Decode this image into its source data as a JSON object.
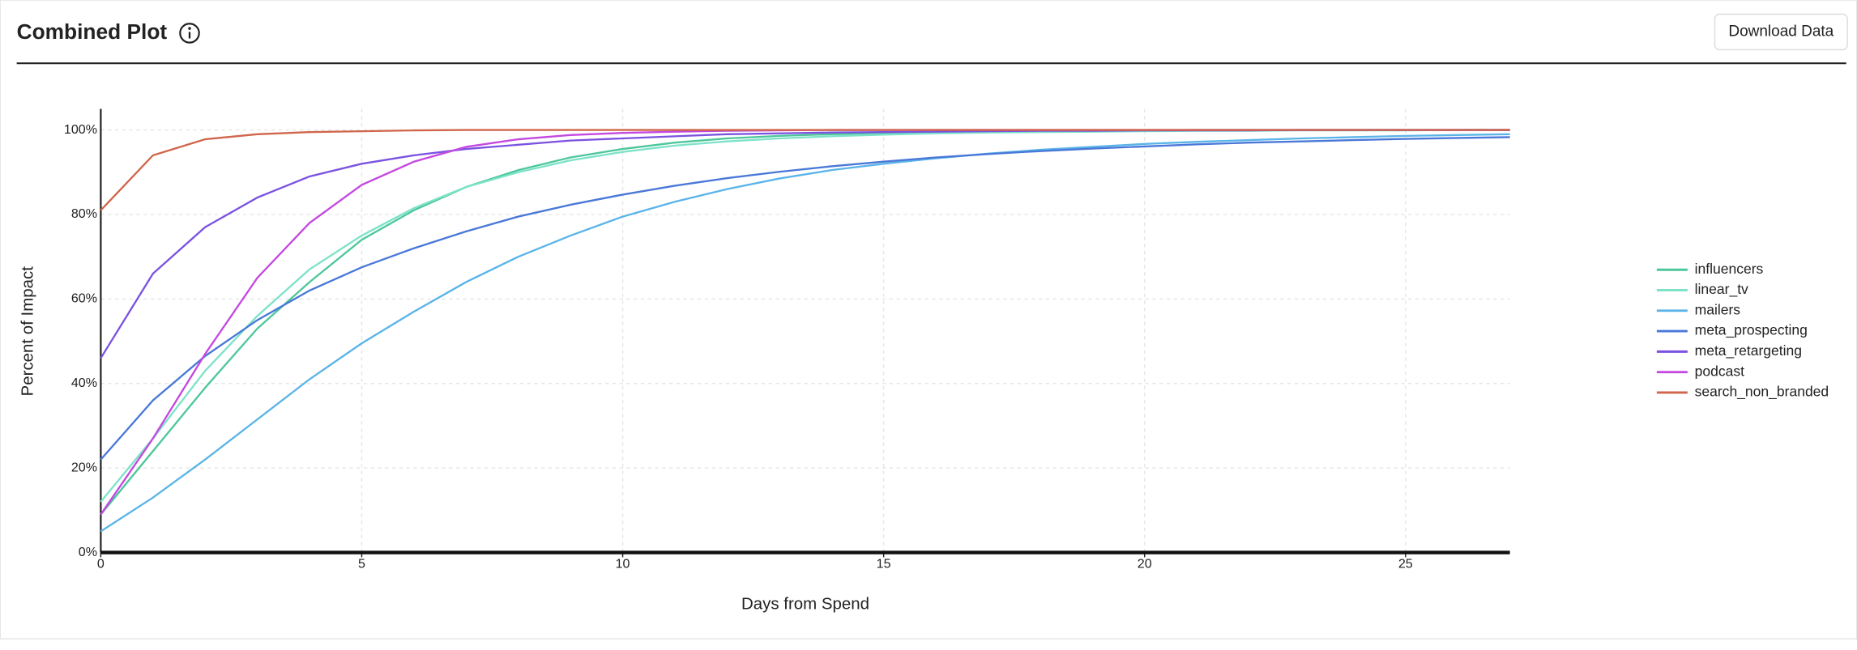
{
  "header": {
    "button": "Download Data"
  },
  "chart_data": {
    "type": "line",
    "title": "Combined Plot",
    "xlabel": "Days from Spend",
    "ylabel": "Percent of Impact",
    "x": [
      0,
      1,
      2,
      3,
      4,
      5,
      6,
      7,
      8,
      9,
      10,
      11,
      12,
      13,
      14,
      15,
      16,
      17,
      18,
      19,
      20,
      21,
      22,
      23,
      24,
      25,
      26,
      27
    ],
    "xlim": [
      0,
      27
    ],
    "xticks": [
      0,
      5,
      10,
      15,
      20,
      25
    ],
    "ylim": [
      0,
      105
    ],
    "yticks": [
      {
        "value": 0,
        "label": "0%"
      },
      {
        "value": 20,
        "label": "20%"
      },
      {
        "value": 40,
        "label": "40%"
      },
      {
        "value": 60,
        "label": "60%"
      },
      {
        "value": 80,
        "label": "80%"
      },
      {
        "value": 100,
        "label": "100%"
      }
    ],
    "grid": true,
    "legend": "right",
    "series": [
      {
        "name": "influencers",
        "color": "#4cc79a",
        "values": [
          9,
          24,
          39,
          53,
          64,
          74,
          81,
          86.5,
          90.5,
          93.5,
          95.5,
          97,
          98,
          98.6,
          99,
          99.3,
          99.5,
          99.7,
          99.8,
          99.9,
          99.9,
          100,
          100,
          100,
          100,
          100,
          100,
          100
        ]
      },
      {
        "name": "linear_tv",
        "color": "#7de2c8",
        "values": [
          12,
          27,
          43,
          56,
          67,
          75,
          81.5,
          86.5,
          90,
          92.8,
          94.8,
          96.3,
          97.3,
          98,
          98.5,
          98.9,
          99.2,
          99.4,
          99.5,
          99.6,
          99.7,
          99.8,
          99.8,
          99.9,
          99.9,
          99.9,
          100,
          100
        ]
      },
      {
        "name": "mailers",
        "color": "#5ab4e8",
        "values": [
          5,
          13,
          22,
          31.5,
          41,
          49.5,
          57,
          64,
          70,
          75,
          79.5,
          83,
          86,
          88.5,
          90.5,
          92,
          93.3,
          94.4,
          95.3,
          96,
          96.7,
          97.2,
          97.6,
          98,
          98.3,
          98.6,
          98.8,
          99
        ]
      },
      {
        "name": "meta_prospecting",
        "color": "#4a78d8",
        "values": [
          22,
          36,
          46.5,
          55,
          62,
          67.5,
          72,
          76,
          79.5,
          82.3,
          84.7,
          86.8,
          88.6,
          90.1,
          91.4,
          92.5,
          93.5,
          94.3,
          95,
          95.6,
          96.1,
          96.6,
          97,
          97.3,
          97.6,
          97.9,
          98.1,
          98.3
        ]
      },
      {
        "name": "meta_retargeting",
        "color": "#7b52e0",
        "values": [
          46,
          66,
          77,
          84,
          89,
          92,
          94,
          95.5,
          96.5,
          97.5,
          98,
          98.5,
          99,
          99.2,
          99.4,
          99.5,
          99.6,
          99.7,
          99.8,
          99.8,
          99.9,
          99.9,
          99.9,
          100,
          100,
          100,
          100,
          100
        ]
      },
      {
        "name": "podcast",
        "color": "#c448e0",
        "values": [
          9,
          27,
          47,
          65,
          78,
          87,
          92.5,
          96,
          97.8,
          98.8,
          99.3,
          99.6,
          99.8,
          99.9,
          100,
          100,
          100,
          100,
          100,
          100,
          100,
          100,
          100,
          100,
          100,
          100,
          100,
          100
        ]
      },
      {
        "name": "search_non_branded",
        "color": "#d0654a",
        "values": [
          81,
          94,
          97.8,
          99,
          99.5,
          99.7,
          99.9,
          100,
          100,
          100,
          100,
          100,
          100,
          100,
          100,
          100,
          100,
          100,
          100,
          100,
          100,
          100,
          100,
          100,
          100,
          100,
          100,
          100
        ]
      }
    ]
  }
}
